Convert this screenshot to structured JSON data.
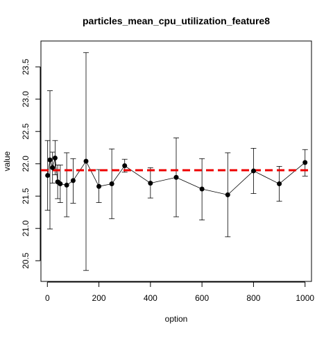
{
  "chart_data": {
    "type": "scatter",
    "title": "particles_mean_cpu_utilization_feature8",
    "xlabel": "option",
    "ylabel": "value",
    "xlim": [
      -25,
      1025
    ],
    "ylim": [
      20.18,
      23.9
    ],
    "x_ticks": [
      0,
      200,
      400,
      600,
      800,
      1000
    ],
    "x_tick_labels": [
      "0",
      "200",
      "400",
      "600",
      "800",
      "1000"
    ],
    "y_ticks": [
      20.5,
      21.0,
      21.5,
      22.0,
      22.5,
      23.0,
      23.5
    ],
    "y_tick_labels": [
      "20.5",
      "21.0",
      "21.5",
      "22.0",
      "22.5",
      "23.0",
      "23.5"
    ],
    "grid": false,
    "series": [
      {
        "points": [
          {
            "x": 1,
            "y": 21.82,
            "lo": 21.28,
            "hi": 22.36
          },
          {
            "x": 10,
            "y": 22.06,
            "lo": 20.99,
            "hi": 23.13
          },
          {
            "x": 20,
            "y": 21.94,
            "lo": 21.7,
            "hi": 22.18
          },
          {
            "x": 30,
            "y": 22.09,
            "lo": 21.83,
            "hi": 22.36
          },
          {
            "x": 40,
            "y": 21.72,
            "lo": 21.46,
            "hi": 21.98
          },
          {
            "x": 50,
            "y": 21.69,
            "lo": 21.4,
            "hi": 21.98
          },
          {
            "x": 75,
            "y": 21.67,
            "lo": 21.18,
            "hi": 22.17
          },
          {
            "x": 100,
            "y": 21.74,
            "lo": 21.39,
            "hi": 22.08
          },
          {
            "x": 150,
            "y": 22.04,
            "lo": 20.35,
            "hi": 23.72
          },
          {
            "x": 200,
            "y": 21.65,
            "lo": 21.4,
            "hi": 21.91
          },
          {
            "x": 250,
            "y": 21.69,
            "lo": 21.15,
            "hi": 22.23
          },
          {
            "x": 300,
            "y": 21.97,
            "lo": 21.87,
            "hi": 22.07
          },
          {
            "x": 400,
            "y": 21.7,
            "lo": 21.47,
            "hi": 21.94
          },
          {
            "x": 500,
            "y": 21.79,
            "lo": 21.18,
            "hi": 22.4
          },
          {
            "x": 600,
            "y": 21.61,
            "lo": 21.13,
            "hi": 22.08
          },
          {
            "x": 700,
            "y": 21.52,
            "lo": 20.87,
            "hi": 22.17
          },
          {
            "x": 800,
            "y": 21.89,
            "lo": 21.54,
            "hi": 22.24
          },
          {
            "x": 900,
            "y": 21.69,
            "lo": 21.42,
            "hi": 21.96
          },
          {
            "x": 1000,
            "y": 22.02,
            "lo": 21.81,
            "hi": 22.22
          }
        ],
        "color": "#000000"
      }
    ],
    "reference_line": {
      "y": 21.9,
      "color": "#ee0000",
      "style": "dashed"
    }
  }
}
